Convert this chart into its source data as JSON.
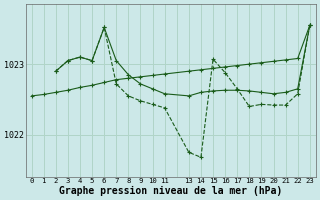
{
  "bg_color": "#cce8e8",
  "grid_color": "#b0d4c8",
  "line_color": "#1a5c1a",
  "xlabel": "Graphe pression niveau de la mer (hPa)",
  "xlabel_fontsize": 7.0,
  "xtick_labels": [
    "0",
    "1",
    "2",
    "3",
    "4",
    "5",
    "6",
    "7",
    "8",
    "9",
    "10",
    "11",
    "",
    "13",
    "14",
    "15",
    "16",
    "17",
    "18",
    "19",
    "20",
    "21",
    "22",
    "23"
  ],
  "ytick_vals": [
    1022,
    1023
  ],
  "ylim": [
    1021.4,
    1023.85
  ],
  "xlim": [
    -0.5,
    23.5
  ],
  "series1_x": [
    0,
    1,
    2,
    3,
    4,
    5,
    6,
    7,
    8,
    9,
    10,
    11,
    13,
    14,
    15,
    16,
    17,
    18,
    19,
    20,
    21,
    22,
    23
  ],
  "series1_y": [
    1022.55,
    1022.57,
    1022.6,
    1022.63,
    1022.67,
    1022.7,
    1022.74,
    1022.78,
    1022.8,
    1022.82,
    1022.84,
    1022.86,
    1022.9,
    1022.92,
    1022.94,
    1022.96,
    1022.98,
    1023.0,
    1023.02,
    1023.04,
    1023.06,
    1023.08,
    1023.55
  ],
  "series2_x": [
    2,
    3,
    4,
    5,
    6,
    7,
    8,
    9,
    10,
    11,
    13,
    14,
    15,
    16,
    17,
    18,
    19,
    20,
    21,
    22,
    23
  ],
  "series2_y": [
    1022.9,
    1023.05,
    1023.1,
    1023.05,
    1023.52,
    1023.05,
    1022.85,
    1022.72,
    1022.65,
    1022.58,
    1022.55,
    1022.6,
    1022.62,
    1022.63,
    1022.63,
    1022.62,
    1022.6,
    1022.58,
    1022.6,
    1022.65,
    1023.55
  ],
  "series3_x": [
    2,
    3,
    4,
    5,
    6,
    7,
    8,
    9,
    10,
    11,
    13,
    14,
    15,
    16,
    17,
    18,
    19,
    20,
    21,
    22,
    23
  ],
  "series3_y": [
    1022.9,
    1023.05,
    1023.1,
    1023.05,
    1023.52,
    1022.72,
    1022.55,
    1022.48,
    1022.43,
    1022.38,
    1021.75,
    1021.68,
    1023.07,
    1022.88,
    1022.65,
    1022.4,
    1022.43,
    1022.42,
    1022.42,
    1022.58,
    1023.55
  ]
}
